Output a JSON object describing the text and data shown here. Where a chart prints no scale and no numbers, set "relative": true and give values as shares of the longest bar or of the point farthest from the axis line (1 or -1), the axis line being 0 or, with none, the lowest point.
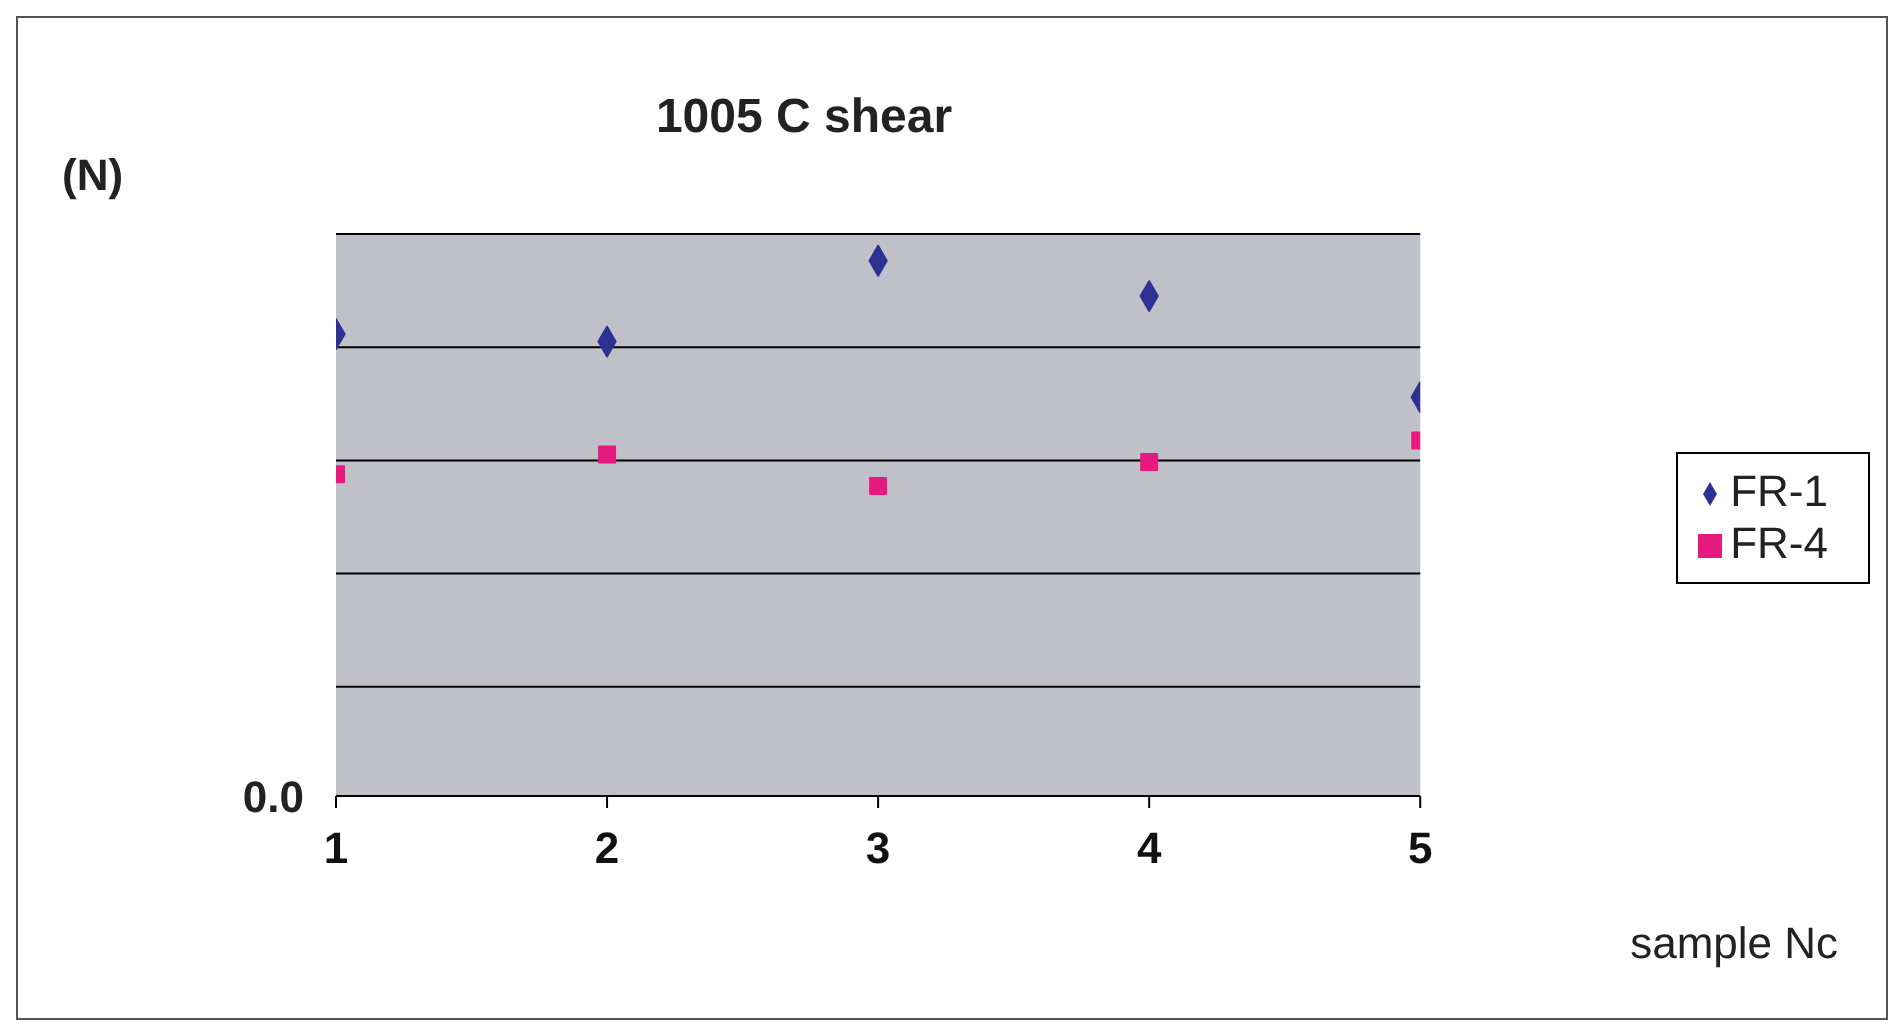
{
  "chart_data": {
    "type": "scatter",
    "title": "1005 C shear",
    "ylabel": "(N)",
    "xlabel": "sample Nc",
    "relative": true,
    "annotations": [
      "0.0"
    ],
    "x": [
      1,
      2,
      3,
      4,
      5
    ],
    "xlim": [
      1,
      5
    ],
    "xticks": [
      1,
      2,
      3,
      4,
      5
    ],
    "series": [
      {
        "name": "FR-1",
        "color": "#2e3192",
        "marker": "diamond",
        "values": [
          0.863,
          0.849,
          1,
          0.934,
          0.745
        ]
      },
      {
        "name": "FR-4",
        "color": "#e6197f",
        "marker": "square",
        "values": [
          0.601,
          0.638,
          0.579,
          0.624,
          0.664
        ]
      }
    ],
    "grid": "y",
    "legend": "right"
  }
}
